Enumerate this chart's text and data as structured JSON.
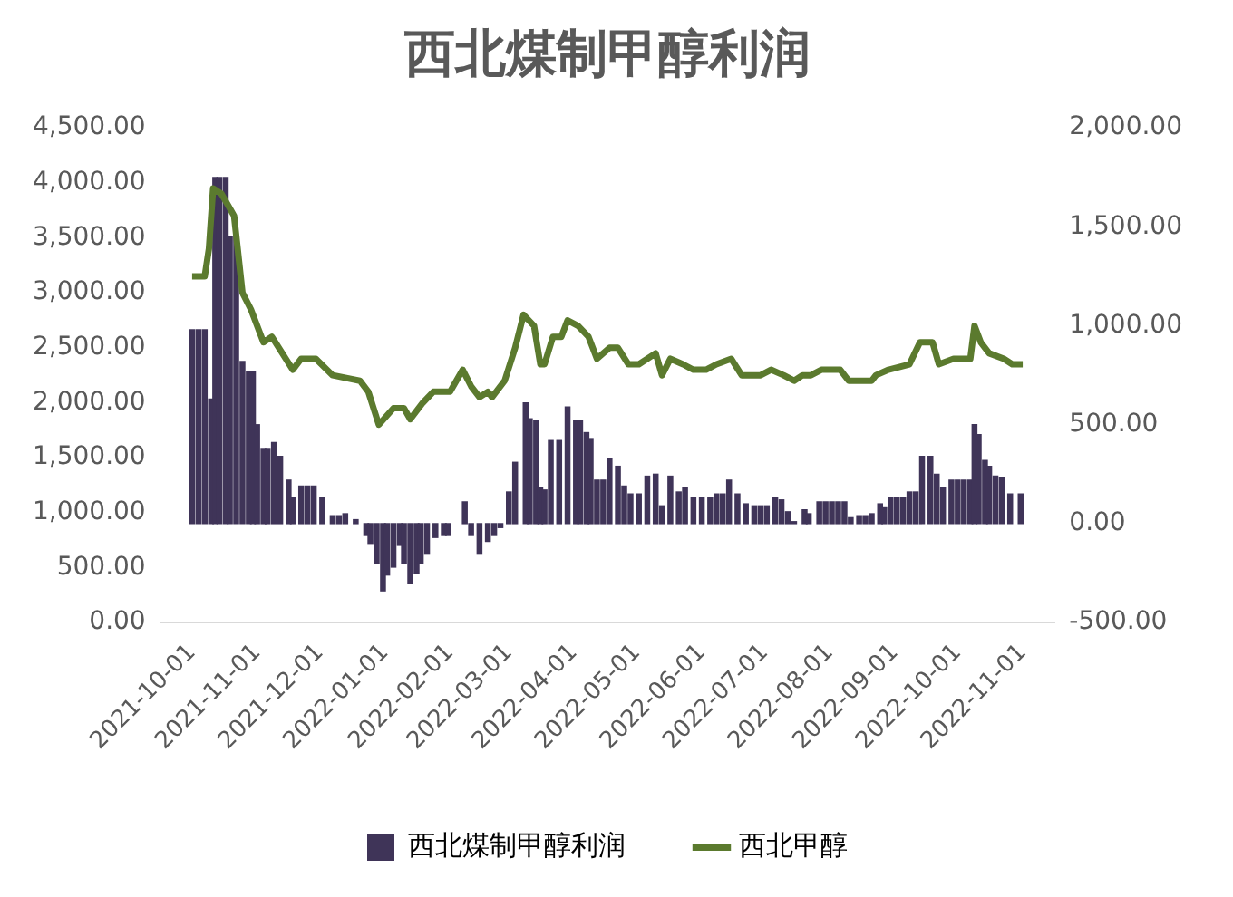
{
  "chart_data": {
    "type": "bar",
    "title": "西北煤制甲醇利润",
    "xlim": [
      "2021-10-01",
      "2022-11-01"
    ],
    "xticks": [
      "2021-10-01",
      "2021-11-01",
      "2021-12-01",
      "2022-01-01",
      "2022-02-01",
      "2022-03-01",
      "2022-04-01",
      "2022-05-01",
      "2022-06-01",
      "2022-07-01",
      "2022-08-01",
      "2022-09-01",
      "2022-10-01",
      "2022-11-01"
    ],
    "ylim": [
      0,
      4500
    ],
    "yticks": [
      {
        "value": 0,
        "label": "0.00"
      },
      {
        "value": 500,
        "label": "500.00"
      },
      {
        "value": 1000,
        "label": "1,000.00"
      },
      {
        "value": 1500,
        "label": "1,500.00"
      },
      {
        "value": 2000,
        "label": "2,000.00"
      },
      {
        "value": 2500,
        "label": "2,500.00"
      },
      {
        "value": 3000,
        "label": "3,000.00"
      },
      {
        "value": 3500,
        "label": "3,500.00"
      },
      {
        "value": 4000,
        "label": "4,000.00"
      },
      {
        "value": 4500,
        "label": "4,500.00"
      }
    ],
    "y2lim": [
      -500,
      2000
    ],
    "y2ticks": [
      {
        "value": -500,
        "label": "-500.00"
      },
      {
        "value": 0,
        "label": "0.00"
      },
      {
        "value": 500,
        "label": "500.00"
      },
      {
        "value": 1000,
        "label": "1,000.00"
      },
      {
        "value": 1500,
        "label": "1,500.00"
      },
      {
        "value": 2000,
        "label": "2,000.00"
      }
    ],
    "legend": "bottom",
    "marker": "none",
    "series": [
      {
        "name": "西北煤制甲醇利润",
        "axis": "y2",
        "color": "#3f3458",
        "x": [
          "2021-10-01",
          "2021-10-04",
          "2021-10-07",
          "2021-10-10",
          "2021-10-12",
          "2021-10-14",
          "2021-10-17",
          "2021-10-19",
          "2021-10-22",
          "2021-10-25",
          "2021-10-28",
          "2021-10-30",
          "2021-11-01",
          "2021-11-04",
          "2021-11-06",
          "2021-11-09",
          "2021-11-12",
          "2021-11-16",
          "2021-11-18",
          "2021-11-22",
          "2021-11-25",
          "2021-11-28",
          "2021-12-02",
          "2021-12-07",
          "2021-12-10",
          "2021-12-13",
          "2021-12-18",
          "2021-12-23",
          "2021-12-25",
          "2021-12-28",
          "2021-12-31",
          "2022-01-02",
          "2022-01-05",
          "2022-01-08",
          "2022-01-10",
          "2022-01-13",
          "2022-01-16",
          "2022-01-18",
          "2022-01-21",
          "2022-01-25",
          "2022-01-29",
          "2022-01-31",
          "2022-02-08",
          "2022-02-11",
          "2022-02-15",
          "2022-02-19",
          "2022-02-22",
          "2022-02-25",
          "2022-03-01",
          "2022-03-04",
          "2022-03-09",
          "2022-03-11",
          "2022-03-14",
          "2022-03-16",
          "2022-03-18",
          "2022-03-21",
          "2022-03-25",
          "2022-03-29",
          "2022-04-02",
          "2022-04-04",
          "2022-04-07",
          "2022-04-09",
          "2022-04-12",
          "2022-04-15",
          "2022-04-18",
          "2022-04-22",
          "2022-04-25",
          "2022-04-28",
          "2022-05-02",
          "2022-05-06",
          "2022-05-10",
          "2022-05-13",
          "2022-05-17",
          "2022-05-21",
          "2022-05-24",
          "2022-05-28",
          "2022-06-01",
          "2022-06-05",
          "2022-06-08",
          "2022-06-11",
          "2022-06-14",
          "2022-06-18",
          "2022-06-22",
          "2022-06-26",
          "2022-06-29",
          "2022-07-02",
          "2022-07-06",
          "2022-07-09",
          "2022-07-12",
          "2022-07-15",
          "2022-07-20",
          "2022-07-22",
          "2022-07-27",
          "2022-07-30",
          "2022-08-02",
          "2022-08-05",
          "2022-08-08",
          "2022-08-11",
          "2022-08-15",
          "2022-08-18",
          "2022-08-21",
          "2022-08-25",
          "2022-08-27",
          "2022-08-30",
          "2022-09-02",
          "2022-09-05",
          "2022-09-08",
          "2022-09-11",
          "2022-09-14",
          "2022-09-18",
          "2022-09-21",
          "2022-09-24",
          "2022-09-28",
          "2022-10-01",
          "2022-10-04",
          "2022-10-07",
          "2022-10-09",
          "2022-10-11",
          "2022-10-14",
          "2022-10-16",
          "2022-10-19",
          "2022-10-22",
          "2022-10-26",
          "2022-10-31"
        ],
        "values": [
          980,
          980,
          980,
          630,
          1750,
          1750,
          1750,
          1450,
          1450,
          820,
          770,
          770,
          500,
          380,
          380,
          410,
          340,
          220,
          130,
          190,
          190,
          190,
          130,
          40,
          40,
          50,
          20,
          -60,
          -100,
          -200,
          -340,
          -260,
          -220,
          -110,
          -200,
          -300,
          -250,
          -200,
          -150,
          -70,
          -60,
          -60,
          110,
          -60,
          -150,
          -90,
          -60,
          -20,
          160,
          310,
          610,
          530,
          520,
          180,
          170,
          420,
          420,
          590,
          520,
          520,
          460,
          430,
          220,
          220,
          330,
          290,
          190,
          150,
          150,
          240,
          250,
          90,
          240,
          160,
          180,
          130,
          130,
          130,
          150,
          150,
          220,
          150,
          100,
          90,
          90,
          90,
          130,
          120,
          60,
          10,
          70,
          50,
          110,
          110,
          110,
          110,
          110,
          30,
          40,
          40,
          50,
          100,
          80,
          130,
          130,
          130,
          160,
          160,
          340,
          340,
          250,
          180,
          220,
          220,
          220,
          220,
          500,
          450,
          320,
          290,
          240,
          230,
          150,
          150
        ]
      },
      {
        "name": "西北甲醇",
        "type": "line",
        "axis": "y",
        "color": "#5b7a2e",
        "x": [
          "2021-10-01",
          "2021-10-07",
          "2021-10-09",
          "2021-10-11",
          "2021-10-15",
          "2021-10-21",
          "2021-10-25",
          "2021-10-29",
          "2021-11-04",
          "2021-11-08",
          "2021-11-13",
          "2021-11-18",
          "2021-11-22",
          "2021-11-29",
          "2021-12-07",
          "2021-12-20",
          "2021-12-24",
          "2021-12-29",
          "2022-01-05",
          "2022-01-10",
          "2022-01-13",
          "2022-01-19",
          "2022-01-24",
          "2022-02-01",
          "2022-02-07",
          "2022-02-11",
          "2022-02-15",
          "2022-02-19",
          "2022-02-21",
          "2022-02-27",
          "2022-03-04",
          "2022-03-08",
          "2022-03-13",
          "2022-03-16",
          "2022-03-18",
          "2022-03-22",
          "2022-03-26",
          "2022-03-29",
          "2022-04-03",
          "2022-04-08",
          "2022-04-12",
          "2022-04-18",
          "2022-04-22",
          "2022-04-27",
          "2022-05-02",
          "2022-05-10",
          "2022-05-13",
          "2022-05-17",
          "2022-05-23",
          "2022-05-28",
          "2022-06-03",
          "2022-06-08",
          "2022-06-15",
          "2022-06-20",
          "2022-06-29",
          "2022-07-04",
          "2022-07-10",
          "2022-07-15",
          "2022-07-19",
          "2022-07-23",
          "2022-07-28",
          "2022-08-06",
          "2022-08-10",
          "2022-08-21",
          "2022-08-23",
          "2022-08-29",
          "2022-09-08",
          "2022-09-13",
          "2022-09-19",
          "2022-09-22",
          "2022-09-29",
          "2022-10-07",
          "2022-10-09",
          "2022-10-12",
          "2022-10-16",
          "2022-10-23",
          "2022-10-27",
          "2022-11-01"
        ],
        "values": [
          3150,
          3150,
          3400,
          3950,
          3900,
          3700,
          3000,
          2850,
          2550,
          2600,
          2450,
          2300,
          2400,
          2400,
          2250,
          2200,
          2100,
          1800,
          1950,
          1950,
          1850,
          2000,
          2100,
          2100,
          2300,
          2150,
          2050,
          2100,
          2050,
          2200,
          2500,
          2800,
          2700,
          2350,
          2350,
          2600,
          2600,
          2750,
          2700,
          2600,
          2400,
          2500,
          2500,
          2350,
          2350,
          2450,
          2250,
          2400,
          2350,
          2300,
          2300,
          2350,
          2400,
          2250,
          2250,
          2300,
          2250,
          2200,
          2250,
          2250,
          2300,
          2300,
          2200,
          2200,
          2250,
          2300,
          2350,
          2550,
          2550,
          2350,
          2400,
          2400,
          2700,
          2550,
          2450,
          2400,
          2350,
          2350
        ]
      }
    ]
  }
}
